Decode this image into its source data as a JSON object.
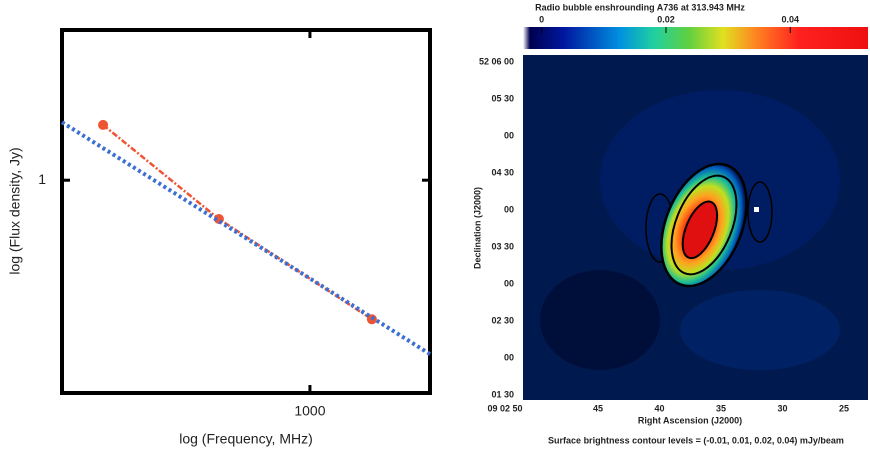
{
  "chart_data": {
    "type": "line",
    "xlabel": "log (Frequency, MHz)",
    "ylabel": "log (Flux density, Jy)",
    "xscale": "log",
    "yscale": "log",
    "xlim": [
      260,
      1920
    ],
    "ylim": [
      0.315,
      2.26
    ],
    "xticks": [
      1000
    ],
    "yticks": [
      1
    ],
    "series": [
      {
        "color": "#ee5533",
        "style": "dashdot",
        "markers": true,
        "x": [
          325,
          610,
          1400
        ],
        "values": [
          1.35,
          0.81,
          0.47
        ]
      },
      {
        "color": "#3b6fd1",
        "style": "dotted",
        "markers": false,
        "x": [
          260,
          1920
        ],
        "values": [
          1.37,
          0.389
        ]
      }
    ]
  },
  "image_panel": {
    "title": "Radio bubble enshrounding A736 at 313.943 MHz",
    "colorbar": {
      "lim": [
        -0.003,
        0.0525
      ],
      "ticks": [
        0,
        0.02,
        0.04
      ]
    },
    "ylabel": "Declination (J2000)",
    "dec_labels": [
      "52 06 00",
      "05 30",
      "00",
      "04 30",
      "00",
      "03 30",
      "00",
      "02 30",
      "00",
      "01 30"
    ],
    "xlabel": "Right Ascension (J2000)",
    "ra_labels": [
      "09 02 50",
      "45",
      "40",
      "35",
      "30",
      "25"
    ],
    "caption": "Surface brightness contour levels = (-0.01, 0.01, 0.02, 0.04) mJy/beam"
  }
}
